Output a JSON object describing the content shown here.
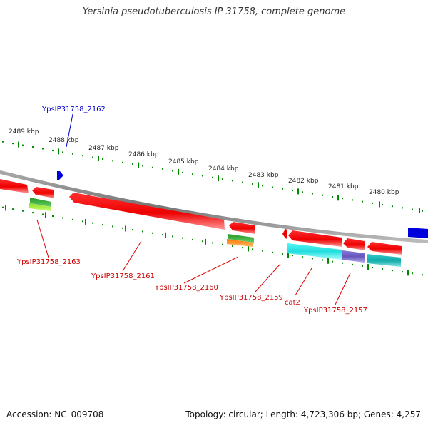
{
  "title": "Yersinia pseudotuberculosis IP 31758, complete genome",
  "footer": {
    "accession": "Accession: NC_009708",
    "summary": "Topology: circular; Length: 4,723,306 bp; Genes: 4,257"
  },
  "colors": {
    "cds": "#ee0000",
    "backbone": "#888888",
    "scale": "#008800",
    "forward_label": "#0000cc",
    "reverse_label": "#cc0000",
    "cog_green": "#33bb33",
    "cog_lime": "#99ee33",
    "cog_orange": "#ff8800",
    "cog_cyan": "#22dddd",
    "cog_purple": "#7766cc",
    "cog_teal": "#11bbbb",
    "blue_feature": "#0000dd"
  },
  "kbp_ticks": [
    "2489 kbp",
    "2488 kbp",
    "2487 kbp",
    "2486 kbp",
    "2485 kbp",
    "2484 kbp",
    "2483 kbp",
    "2482 kbp",
    "2481 kbp",
    "2480 kbp"
  ],
  "gene_labels": {
    "forward": [
      "YpsIP31758_2162"
    ],
    "reverse": [
      "YpsIP31758_2163",
      "YpsIP31758_2161",
      "YpsIP31758_2160",
      "YpsIP31758_2159",
      "cat2",
      "YpsIP31758_2157"
    ]
  }
}
